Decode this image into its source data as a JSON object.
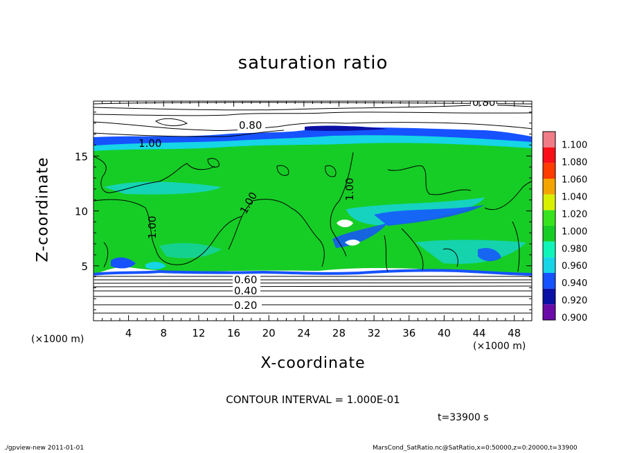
{
  "chart_data": {
    "type": "heatmap",
    "title": "saturation ratio",
    "xlabel": "X-coordinate",
    "ylabel": "Z-coordinate",
    "x_unit": "(×1000 m)",
    "y_unit": "(×1000 m)",
    "x_ticks": [
      4,
      8,
      12,
      16,
      20,
      24,
      28,
      32,
      36,
      40,
      44,
      48
    ],
    "y_ticks": [
      5,
      10,
      15
    ],
    "xlim": [
      0,
      50
    ],
    "ylim": [
      0,
      20
    ],
    "colorbar": {
      "levels": [
        "0.900",
        "0.920",
        "0.940",
        "0.960",
        "0.980",
        "1.000",
        "1.020",
        "1.040",
        "1.060",
        "1.080",
        "1.100"
      ],
      "colors": [
        "#6a0ba8",
        "#0b10a5",
        "#1652ff",
        "#15d5e6",
        "#0ff5b9",
        "#16cd26",
        "#36e31d",
        "#d8f000",
        "#f3a400",
        "#ff3c00",
        "#f90f17",
        "#f07c87"
      ]
    },
    "regions": {
      "upper_dry": {
        "z_min": 16.6,
        "value": "< 0.900"
      },
      "moist_band": {
        "z_min": 15.0,
        "z_max": 16.6,
        "value": "0.920–0.960"
      },
      "saturated_core": {
        "z_min": 4.5,
        "z_max": 15.0,
        "value": "≈1.000"
      },
      "lower_dry": {
        "z_max": 4.5,
        "value": "< 0.900"
      }
    },
    "contour_labels": [
      "0.80",
      "0.80",
      "1.00",
      "1.00",
      "1.00",
      "1.00",
      "0.60",
      "0.40",
      "0.20"
    ],
    "contour_interval": "CONTOUR INTERVAL = 1.000E-01",
    "time": "t=33900 s"
  },
  "footer": {
    "left": "./gpview-new 2011-01-01",
    "right": "MarsCond_SatRatio.nc@SatRatio,x=0:50000,z=0:20000,t=33900"
  }
}
